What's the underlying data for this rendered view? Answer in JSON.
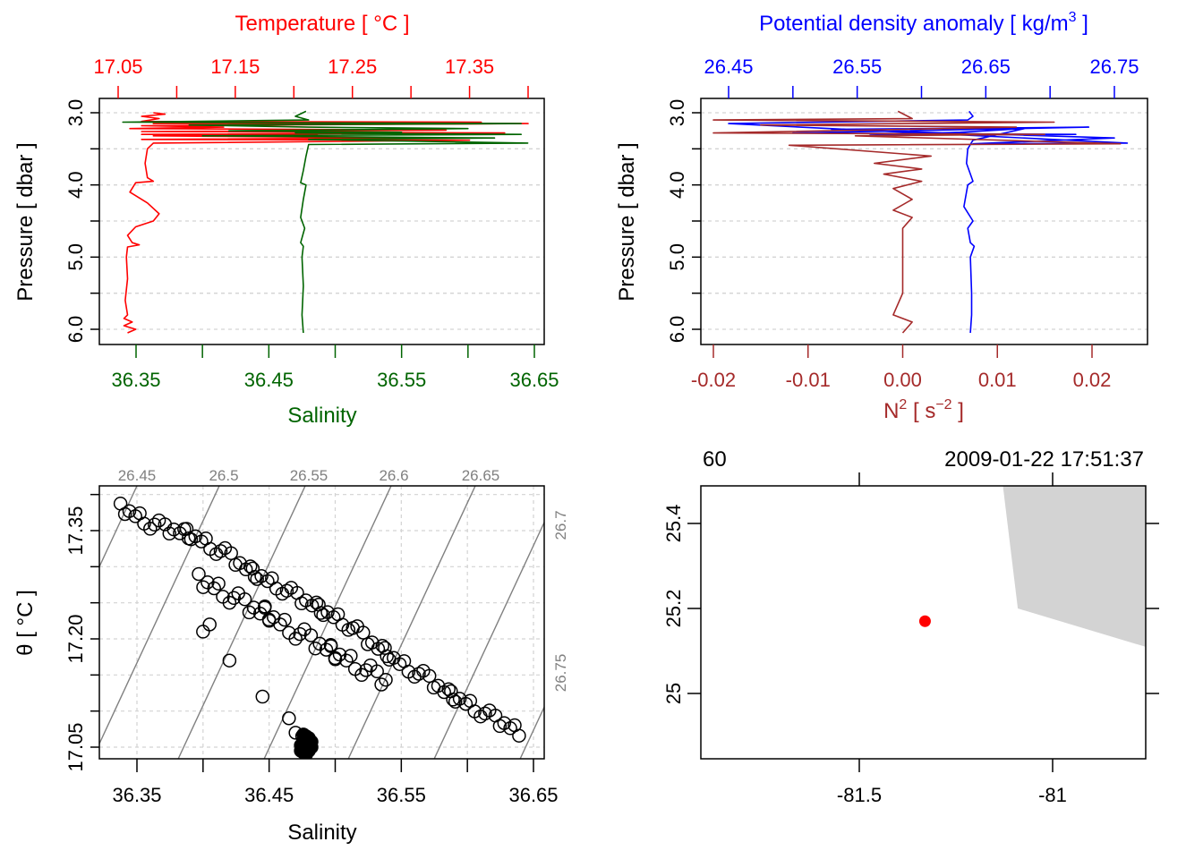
{
  "colors": {
    "temperature": "#ff0000",
    "salinity": "#006400",
    "density": "#0000ff",
    "n2": "#a52a2a",
    "grid": "#d3d3d3",
    "isopycnal": "#808080",
    "land": "#d3d3d3",
    "station": "#ff0000",
    "axis": "#000000"
  },
  "chart_data": [
    {
      "type": "line",
      "panel": "top-left",
      "title": "Temperature [ °C ]",
      "ylabel": "Pressure [ dbar ]",
      "xlabel": "Salinity",
      "ylim": [
        3.0,
        6.0
      ],
      "y_reversed": true,
      "y_ticks": [
        3.0,
        3.5,
        4.0,
        4.5,
        5.0,
        5.5,
        6.0
      ],
      "y_tick_labels": [
        "3.0",
        "4.0",
        "5.0",
        "6.0"
      ],
      "top_axis": {
        "label": "Temperature [ °C ]",
        "ticks": [
          17.05,
          17.1,
          17.15,
          17.2,
          17.25,
          17.3,
          17.35,
          17.4
        ],
        "tick_labels": [
          "17.05",
          "17.15",
          "17.25",
          "17.35"
        ],
        "color": "temperature"
      },
      "bottom_axis": {
        "label": "Salinity",
        "ticks": [
          36.35,
          36.4,
          36.45,
          36.5,
          36.55,
          36.6,
          36.65
        ],
        "tick_labels": [
          "36.35",
          "36.45",
          "36.55",
          "36.65"
        ],
        "color": "salinity"
      },
      "grid": true,
      "series": [
        {
          "name": "Temperature",
          "axis": "top",
          "color": "temperature",
          "points": [
            [
              17.08,
              3.0
            ],
            [
              17.09,
              3.02
            ],
            [
              17.07,
              3.05
            ],
            [
              17.085,
              3.08
            ],
            [
              17.07,
              3.12
            ],
            [
              17.36,
              3.13
            ],
            [
              17.08,
              3.15
            ],
            [
              17.4,
              3.15
            ],
            [
              17.07,
              3.18
            ],
            [
              17.14,
              3.2
            ],
            [
              17.06,
              3.22
            ],
            [
              17.33,
              3.24
            ],
            [
              17.07,
              3.26
            ],
            [
              17.38,
              3.28
            ],
            [
              17.07,
              3.3
            ],
            [
              17.22,
              3.3
            ],
            [
              17.08,
              3.32
            ],
            [
              17.3,
              3.35
            ],
            [
              17.07,
              3.37
            ],
            [
              17.35,
              3.38
            ],
            [
              17.08,
              3.42
            ],
            [
              17.075,
              3.5
            ],
            [
              17.073,
              3.7
            ],
            [
              17.075,
              3.9
            ],
            [
              17.08,
              3.95
            ],
            [
              17.065,
              3.97
            ],
            [
              17.06,
              4.1
            ],
            [
              17.075,
              4.25
            ],
            [
              17.085,
              4.4
            ],
            [
              17.08,
              4.5
            ],
            [
              17.065,
              4.58
            ],
            [
              17.058,
              4.7
            ],
            [
              17.062,
              4.8
            ],
            [
              17.068,
              4.83
            ],
            [
              17.058,
              4.86
            ],
            [
              17.057,
              5.0
            ],
            [
              17.058,
              5.3
            ],
            [
              17.056,
              5.6
            ],
            [
              17.058,
              5.8
            ],
            [
              17.055,
              5.85
            ],
            [
              17.062,
              5.9
            ],
            [
              17.055,
              5.95
            ],
            [
              17.065,
              6.0
            ],
            [
              17.058,
              6.05
            ]
          ]
        },
        {
          "name": "Salinity",
          "axis": "bottom",
          "color": "salinity",
          "points": [
            [
              36.478,
              2.98
            ],
            [
              36.47,
              3.05
            ],
            [
              36.48,
              3.1
            ],
            [
              36.34,
              3.13
            ],
            [
              36.64,
              3.15
            ],
            [
              36.39,
              3.17
            ],
            [
              36.48,
              3.2
            ],
            [
              36.6,
              3.22
            ],
            [
              36.42,
              3.25
            ],
            [
              36.55,
              3.27
            ],
            [
              36.47,
              3.28
            ],
            [
              36.64,
              3.3
            ],
            [
              36.4,
              3.32
            ],
            [
              36.62,
              3.35
            ],
            [
              36.48,
              3.37
            ],
            [
              36.645,
              3.42
            ],
            [
              36.48,
              3.44
            ],
            [
              36.478,
              3.6
            ],
            [
              36.476,
              3.8
            ],
            [
              36.474,
              3.97
            ],
            [
              36.478,
              4.0
            ],
            [
              36.476,
              4.2
            ],
            [
              36.474,
              4.45
            ],
            [
              36.477,
              4.6
            ],
            [
              36.474,
              4.8
            ],
            [
              36.476,
              4.85
            ],
            [
              36.475,
              5.0
            ],
            [
              36.476,
              5.4
            ],
            [
              36.475,
              5.8
            ],
            [
              36.476,
              6.05
            ]
          ]
        }
      ]
    },
    {
      "type": "line",
      "panel": "top-right",
      "title": "Potential density anomaly [ kg/m³ ]",
      "ylabel": "Pressure [ dbar ]",
      "xlabel": "N² [ s⁻² ]",
      "ylim": [
        3.0,
        6.0
      ],
      "y_reversed": true,
      "y_ticks": [
        3.0,
        3.5,
        4.0,
        4.5,
        5.0,
        5.5,
        6.0
      ],
      "y_tick_labels": [
        "3.0",
        "4.0",
        "5.0",
        "6.0"
      ],
      "top_axis": {
        "label_main": "Potential density anomaly [ kg/m",
        "label_sup": "3",
        "label_end": " ]",
        "ticks": [
          26.45,
          26.5,
          26.55,
          26.6,
          26.65,
          26.7,
          26.75
        ],
        "tick_labels": [
          "26.45",
          "26.55",
          "26.65",
          "26.75"
        ],
        "color": "density"
      },
      "bottom_axis": {
        "label_main": "N",
        "label_sup1": "2",
        "label_mid": " [ s",
        "label_sup2": "−2",
        "label_end": " ]",
        "ticks": [
          -0.02,
          -0.01,
          0.0,
          0.01,
          0.02
        ],
        "tick_labels": [
          "-0.02",
          "-0.01",
          "0.00",
          "0.01",
          "0.02"
        ],
        "color": "n2"
      },
      "grid": true,
      "series": [
        {
          "name": "Potential density anomaly",
          "axis": "top",
          "color": "density",
          "points": [
            [
              26.637,
              2.98
            ],
            [
              26.64,
              3.05
            ],
            [
              26.636,
              3.1
            ],
            [
              26.45,
              3.15
            ],
            [
              26.76,
              3.42
            ],
            [
              26.64,
              3.43
            ],
            [
              26.75,
              3.35
            ],
            [
              26.53,
              3.23
            ],
            [
              26.73,
              3.2
            ],
            [
              26.5,
              3.28
            ],
            [
              26.72,
              3.3
            ],
            [
              26.56,
              3.31
            ],
            [
              26.63,
              3.27
            ],
            [
              26.68,
              3.22
            ],
            [
              26.64,
              3.38
            ],
            [
              26.636,
              3.5
            ],
            [
              26.635,
              3.7
            ],
            [
              26.64,
              3.95
            ],
            [
              26.636,
              4.0
            ],
            [
              26.633,
              4.3
            ],
            [
              26.64,
              4.5
            ],
            [
              26.636,
              4.6
            ],
            [
              26.638,
              4.8
            ],
            [
              26.641,
              4.85
            ],
            [
              26.638,
              5.0
            ],
            [
              26.639,
              5.5
            ],
            [
              26.639,
              5.8
            ],
            [
              26.638,
              6.05
            ]
          ]
        },
        {
          "name": "N2",
          "axis": "bottom",
          "color": "n2",
          "points": [
            [
              -0.0005,
              2.98
            ],
            [
              0.001,
              3.08
            ],
            [
              -0.02,
              3.1
            ],
            [
              0.016,
              3.13
            ],
            [
              -0.015,
              3.17
            ],
            [
              0.012,
              3.2
            ],
            [
              -0.02,
              3.28
            ],
            [
              0.015,
              3.3
            ],
            [
              -0.005,
              3.32
            ],
            [
              0.023,
              3.43
            ],
            [
              -0.012,
              3.45
            ],
            [
              0.003,
              3.6
            ],
            [
              -0.003,
              3.7
            ],
            [
              0.002,
              3.78
            ],
            [
              -0.002,
              3.85
            ],
            [
              0.002,
              3.95
            ],
            [
              -0.001,
              4.05
            ],
            [
              0.001,
              4.2
            ],
            [
              -0.001,
              4.35
            ],
            [
              0.001,
              4.45
            ],
            [
              0.0,
              4.6
            ],
            [
              0.0,
              5.0
            ],
            [
              0.0,
              5.5
            ],
            [
              -0.001,
              5.8
            ],
            [
              0.001,
              5.9
            ],
            [
              0.0,
              6.05
            ]
          ]
        }
      ]
    },
    {
      "type": "scatter",
      "panel": "bottom-left",
      "title": "",
      "xlabel": "Salinity",
      "ylabel": "θ [ °C ]",
      "xlim": [
        36.33,
        36.65
      ],
      "ylim": [
        17.05,
        17.39
      ],
      "x_ticks": [
        36.35,
        36.4,
        36.45,
        36.5,
        36.55,
        36.6,
        36.65
      ],
      "x_tick_labels": [
        "36.35",
        "36.45",
        "36.55",
        "36.65"
      ],
      "y_ticks": [
        17.05,
        17.1,
        17.15,
        17.2,
        17.25,
        17.3,
        17.35,
        17.4
      ],
      "y_tick_labels": [
        "17.05",
        "17.20",
        "17.35"
      ],
      "grid": true,
      "isopycnals": {
        "top_labels": [
          "26.45",
          "26.5",
          "26.55",
          "26.6",
          "26.65"
        ],
        "right_labels": [
          "26.7",
          "26.75"
        ],
        "values": [
          26.45,
          26.5,
          26.55,
          26.6,
          26.65,
          26.7,
          26.75,
          26.8
        ]
      },
      "points_cluster_upper": [
        [
          36.34,
          17.38
        ],
        [
          36.35,
          17.37
        ],
        [
          36.36,
          17.36
        ],
        [
          36.37,
          17.355
        ],
        [
          36.38,
          17.35
        ],
        [
          36.39,
          17.345
        ],
        [
          36.4,
          17.335
        ],
        [
          36.41,
          17.325
        ],
        [
          36.42,
          17.315
        ],
        [
          36.43,
          17.3
        ],
        [
          36.44,
          17.29
        ],
        [
          36.45,
          17.28
        ],
        [
          36.46,
          17.27
        ],
        [
          36.47,
          17.26
        ],
        [
          36.48,
          17.25
        ],
        [
          36.49,
          17.24
        ],
        [
          36.5,
          17.23
        ],
        [
          36.51,
          17.22
        ],
        [
          36.52,
          17.205
        ],
        [
          36.53,
          17.19
        ],
        [
          36.54,
          17.18
        ],
        [
          36.55,
          17.165
        ],
        [
          36.56,
          17.155
        ],
        [
          36.57,
          17.145
        ],
        [
          36.58,
          17.13
        ],
        [
          36.59,
          17.12
        ],
        [
          36.6,
          17.11
        ],
        [
          36.61,
          17.1
        ],
        [
          36.62,
          17.09
        ],
        [
          36.63,
          17.08
        ],
        [
          36.64,
          17.07
        ]
      ],
      "points_cluster_lower": [
        [
          36.4,
          17.28
        ],
        [
          36.41,
          17.27
        ],
        [
          36.42,
          17.26
        ],
        [
          36.43,
          17.25
        ],
        [
          36.44,
          17.24
        ],
        [
          36.45,
          17.235
        ],
        [
          36.46,
          17.22
        ],
        [
          36.47,
          17.21
        ],
        [
          36.48,
          17.2
        ],
        [
          36.49,
          17.19
        ],
        [
          36.5,
          17.18
        ],
        [
          36.51,
          17.17
        ],
        [
          36.52,
          17.16
        ],
        [
          36.53,
          17.15
        ],
        [
          36.54,
          17.14
        ]
      ],
      "points_outliers": [
        [
          36.4,
          17.21
        ],
        [
          36.405,
          17.22
        ],
        [
          36.42,
          17.17
        ],
        [
          36.445,
          17.12
        ],
        [
          36.465,
          17.09
        ],
        [
          36.47,
          17.07
        ],
        [
          36.475,
          17.065
        ]
      ],
      "points_dense_cluster": [
        [
          36.478,
          17.06
        ],
        [
          36.478,
          17.05
        ],
        [
          36.48,
          17.055
        ],
        [
          36.476,
          17.045
        ]
      ]
    },
    {
      "type": "map",
      "panel": "bottom-right",
      "title_left": "60",
      "title_right": "2009-01-22 17:51:37",
      "xlim": [
        -81.9,
        -80.76
      ],
      "ylim": [
        24.86,
        25.5
      ],
      "x_ticks": [
        -81.5,
        -81
      ],
      "x_tick_labels": [
        "-81.5",
        "-81"
      ],
      "y_ticks": [
        25.0,
        25.2,
        25.4
      ],
      "y_tick_labels": [
        "25",
        "25.2",
        "25.4"
      ],
      "station": {
        "lon": -81.33,
        "lat": 25.17
      },
      "land_polygon": [
        [
          -81.13,
          25.5
        ],
        [
          -81.09,
          25.2
        ],
        [
          -80.76,
          25.11
        ],
        [
          -80.76,
          25.5
        ]
      ]
    }
  ]
}
